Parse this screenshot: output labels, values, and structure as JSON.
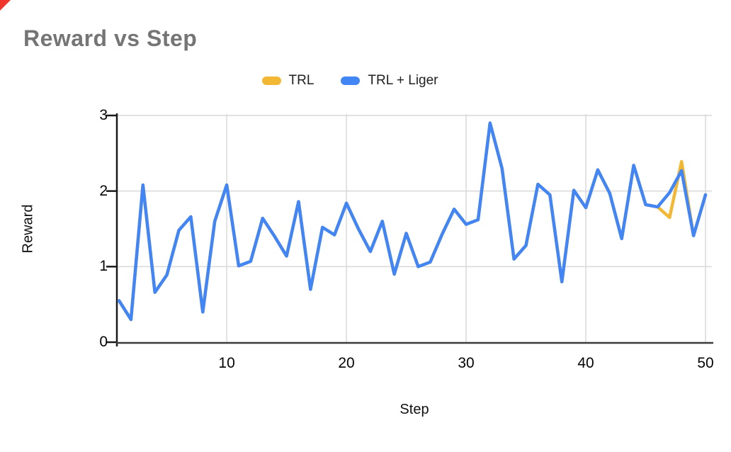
{
  "corner_marker_color": "#f0352b",
  "chart_data": {
    "type": "line",
    "title": "Reward vs Step",
    "xlabel": "Step",
    "ylabel": "Reward",
    "xlim": [
      1,
      50
    ],
    "ylim": [
      0,
      3
    ],
    "x_ticks": [
      10,
      20,
      30,
      40,
      50
    ],
    "y_ticks": [
      0,
      1,
      2,
      3
    ],
    "grid": true,
    "legend_position": "top-center",
    "axis_color": "#1a1a1a",
    "grid_color": "#d9d9d9",
    "x": [
      1,
      2,
      3,
      4,
      5,
      6,
      7,
      8,
      9,
      10,
      11,
      12,
      13,
      14,
      15,
      16,
      17,
      18,
      19,
      20,
      21,
      22,
      23,
      24,
      25,
      26,
      27,
      28,
      29,
      30,
      31,
      32,
      33,
      34,
      35,
      36,
      37,
      38,
      39,
      40,
      41,
      42,
      43,
      44,
      45,
      46,
      47,
      48,
      49,
      50
    ],
    "series": [
      {
        "name": "TRL",
        "color": "#f2b834",
        "values": [
          0.55,
          0.3,
          2.08,
          0.66,
          0.89,
          1.48,
          1.66,
          0.4,
          1.6,
          2.08,
          1.01,
          1.07,
          1.64,
          1.4,
          1.14,
          1.86,
          0.7,
          1.52,
          1.42,
          1.84,
          1.5,
          1.2,
          1.6,
          0.9,
          1.44,
          1.0,
          1.06,
          1.43,
          1.76,
          1.56,
          1.62,
          2.9,
          2.3,
          1.1,
          1.28,
          2.09,
          1.95,
          0.8,
          2.01,
          1.78,
          2.28,
          1.97,
          1.37,
          2.34,
          1.82,
          1.79,
          1.65,
          2.39,
          1.41,
          1.95
        ]
      },
      {
        "name": "TRL + Liger",
        "color": "#4285f4",
        "values": [
          0.55,
          0.3,
          2.08,
          0.66,
          0.89,
          1.48,
          1.66,
          0.4,
          1.6,
          2.08,
          1.01,
          1.07,
          1.64,
          1.4,
          1.14,
          1.86,
          0.7,
          1.52,
          1.42,
          1.84,
          1.5,
          1.2,
          1.6,
          0.9,
          1.44,
          1.0,
          1.06,
          1.43,
          1.76,
          1.56,
          1.62,
          2.9,
          2.3,
          1.1,
          1.28,
          2.09,
          1.95,
          0.8,
          2.01,
          1.78,
          2.28,
          1.97,
          1.37,
          2.34,
          1.82,
          1.79,
          1.98,
          2.27,
          1.41,
          1.95
        ]
      }
    ]
  }
}
